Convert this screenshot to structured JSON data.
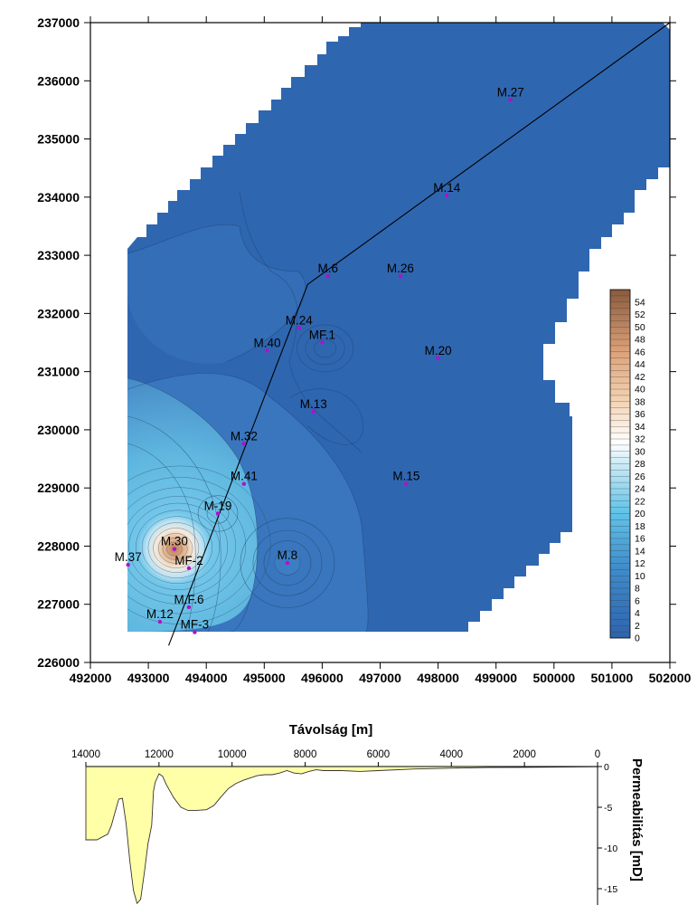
{
  "chart_data": [
    {
      "type": "heatmap",
      "subtype": "contour-map",
      "x_ticks": [
        492000,
        493000,
        494000,
        495000,
        496000,
        497000,
        498000,
        499000,
        500000,
        501000,
        502000
      ],
      "y_ticks": [
        226000,
        227000,
        228000,
        229000,
        230000,
        231000,
        232000,
        233000,
        234000,
        235000,
        236000,
        237000
      ],
      "xlim": [
        492000,
        502000
      ],
      "ylim": [
        226000,
        237000
      ],
      "grid": false,
      "colorbar": {
        "labels": [
          "0",
          "2",
          "4",
          "6",
          "8",
          "10",
          "12",
          "14",
          "16",
          "18",
          "20",
          "22",
          "24",
          "26",
          "28",
          "30",
          "32",
          "34",
          "36",
          "38",
          "40",
          "42",
          "44",
          "46",
          "48",
          "50",
          "52",
          "54"
        ],
        "range": [
          0,
          56
        ],
        "colors": [
          "#2e63ad",
          "#61c3e8",
          "#ffffff",
          "#f3c79d",
          "#8a5a3e"
        ],
        "placement": "right"
      },
      "wells": [
        {
          "name": "M.27",
          "x": 499250,
          "y": 235670
        },
        {
          "name": "M.14",
          "x": 498150,
          "y": 234030
        },
        {
          "name": "M.6",
          "x": 496100,
          "y": 232640
        },
        {
          "name": "M.26",
          "x": 497350,
          "y": 232640
        },
        {
          "name": "M.24",
          "x": 495600,
          "y": 231750
        },
        {
          "name": "MF.1",
          "x": 496000,
          "y": 231500
        },
        {
          "name": "M.40",
          "x": 495050,
          "y": 231360
        },
        {
          "name": "M.20",
          "x": 498000,
          "y": 231230
        },
        {
          "name": "M.13",
          "x": 495850,
          "y": 230310
        },
        {
          "name": "M.32",
          "x": 494650,
          "y": 229760
        },
        {
          "name": "M.15",
          "x": 497450,
          "y": 229070
        },
        {
          "name": "M.41",
          "x": 494650,
          "y": 229070
        },
        {
          "name": "M-19",
          "x": 494200,
          "y": 228560
        },
        {
          "name": "M.30",
          "x": 493450,
          "y": 227950
        },
        {
          "name": "MF-2",
          "x": 493700,
          "y": 227620
        },
        {
          "name": "M.37",
          "x": 492650,
          "y": 227680
        },
        {
          "name": "M.8",
          "x": 495400,
          "y": 227710
        },
        {
          "name": "M.F.6",
          "x": 493700,
          "y": 226950
        },
        {
          "name": "M.12",
          "x": 493200,
          "y": 226700
        },
        {
          "name": "MF-3",
          "x": 493800,
          "y": 226520
        }
      ],
      "section_line": [
        [
          493350,
          226290
        ],
        [
          495750,
          232500
        ],
        [
          502000,
          237000
        ]
      ]
    },
    {
      "type": "area",
      "xlabel": "Távolság [m]",
      "ylabel": "Permeabilitás [mD]",
      "x_ticks": [
        14000,
        12000,
        10000,
        8000,
        6000,
        4000,
        2000,
        0
      ],
      "y_ticks": [
        0,
        5,
        10,
        15
      ],
      "xlim": [
        14000,
        0
      ],
      "ylim": [
        0,
        17
      ],
      "fill_color": "#ffffa8",
      "x": [
        14000,
        13700,
        13400,
        13300,
        13200,
        13100,
        13000,
        12900,
        12800,
        12700,
        12600,
        12500,
        12400,
        12300,
        12200,
        12150,
        12100,
        12000,
        11900,
        11800,
        11600,
        11400,
        11200,
        11000,
        10700,
        10500,
        10300,
        10100,
        9900,
        9700,
        9500,
        9300,
        9100,
        8900,
        8700,
        8500,
        8300,
        8100,
        7900,
        7700,
        7500,
        7000,
        6500,
        6000,
        5000,
        4000,
        3000,
        2000,
        1000,
        0
      ],
      "y": [
        9.0,
        9.0,
        8.3,
        7.2,
        5.6,
        4.0,
        3.9,
        7.0,
        11.5,
        15.2,
        16.8,
        16.3,
        13.0,
        9.5,
        7.2,
        3.0,
        1.9,
        0.9,
        1.2,
        2.2,
        3.8,
        5.0,
        5.4,
        5.4,
        5.3,
        4.8,
        3.7,
        2.7,
        2.1,
        1.7,
        1.4,
        1.1,
        1.0,
        1.0,
        0.8,
        0.5,
        0.8,
        0.9,
        0.6,
        0.4,
        0.5,
        0.5,
        0.6,
        0.5,
        0.3,
        0.2,
        0.12,
        0.1,
        0.05,
        0.02
      ]
    }
  ]
}
